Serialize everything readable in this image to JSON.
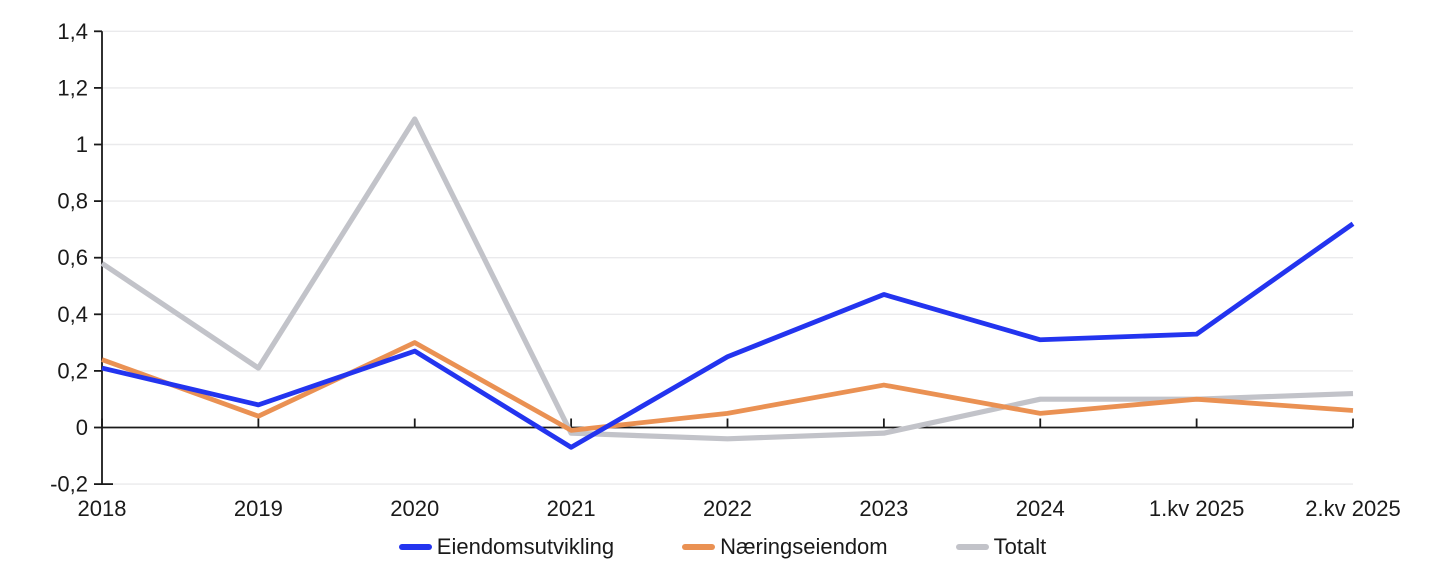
{
  "page": {
    "background_color": "#FFFFFF"
  },
  "chart_data": {
    "type": "line",
    "title": "",
    "xlabel": "",
    "ylabel": "",
    "categories": [
      "2018",
      "2019",
      "2020",
      "2021",
      "2022",
      "2023",
      "2024",
      "1.kv 2025",
      "2.kv 2025"
    ],
    "series": [
      {
        "name": "Eiendomsutvikling",
        "color": "#2334EF",
        "values": [
          0.21,
          0.08,
          0.27,
          -0.07,
          0.25,
          0.47,
          0.31,
          0.33,
          0.72
        ]
      },
      {
        "name": "Næringseiendom",
        "color": "#EA9153",
        "values": [
          0.24,
          0.04,
          0.3,
          -0.01,
          0.05,
          0.15,
          0.05,
          0.1,
          0.06
        ]
      },
      {
        "name": "Totalt",
        "color": "#C2C3C9",
        "values": [
          0.58,
          0.21,
          1.09,
          -0.02,
          -0.04,
          -0.02,
          0.1,
          0.1,
          0.12
        ]
      }
    ],
    "ylim": [
      -0.2,
      1.4
    ],
    "y_tick_values": [
      -0.2,
      0,
      0.2,
      0.4,
      0.6,
      0.8,
      1,
      1.2,
      1.4
    ],
    "y_tick_labels": [
      "-0,2",
      "0",
      "0,2",
      "0,4",
      "0,6",
      "0,8",
      "1",
      "1,2",
      "1,4"
    ],
    "decimal_separator": ",",
    "grid": "horizontal",
    "zero_line": true,
    "legend_position": "bottom",
    "axis_color": "#1A1A1A",
    "grid_color": "#EAEAEC",
    "text_color": "#1A1A1A"
  }
}
